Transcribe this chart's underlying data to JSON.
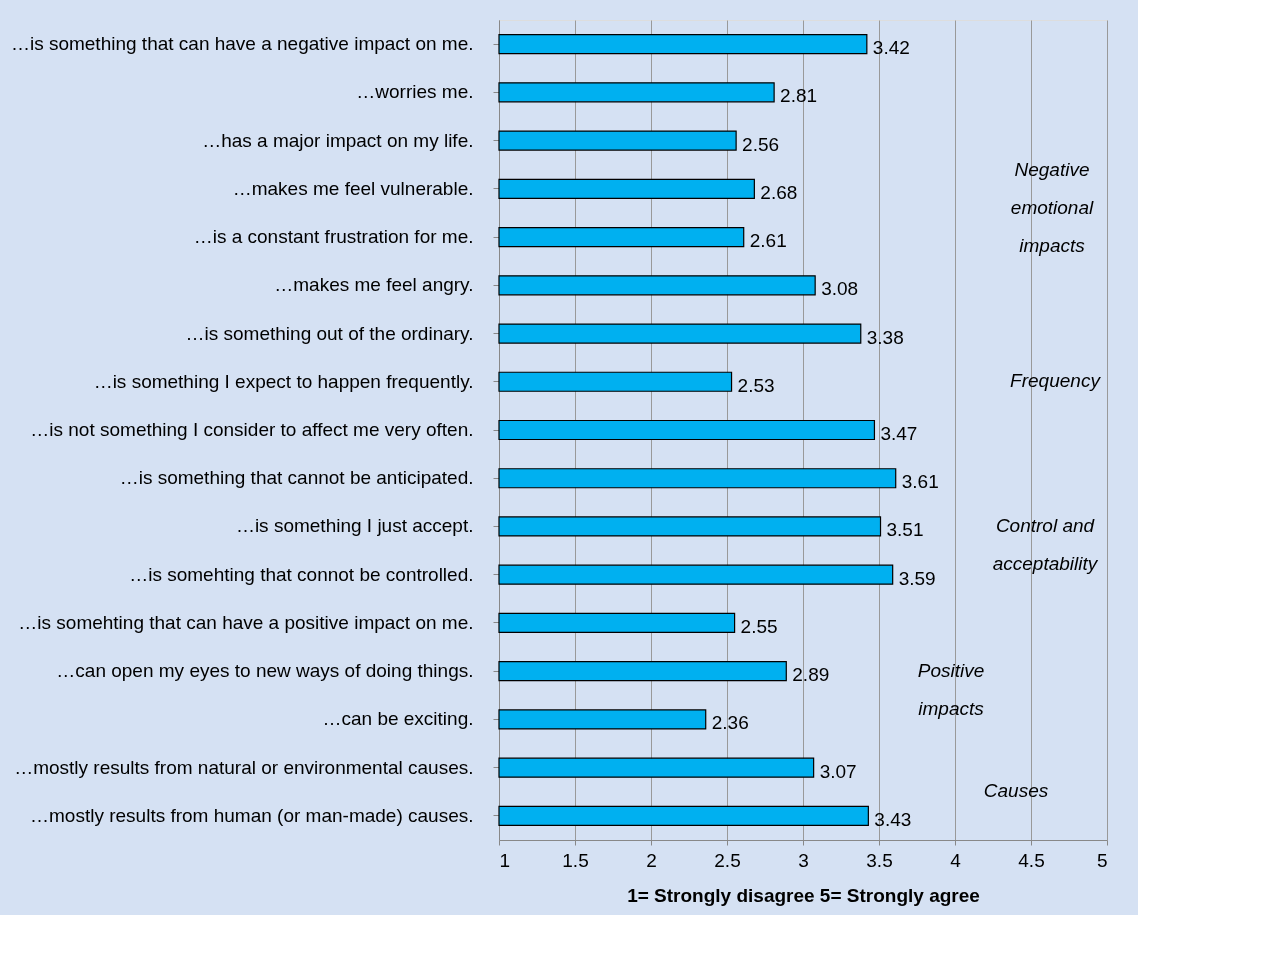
{
  "chart_data": {
    "type": "bar",
    "orientation": "horizontal",
    "xlabel": "1= Strongly disagree 5= Strongly agree",
    "categories": [
      "…is something that can have a negative impact on me.",
      "…worries me.",
      "…has a major impact on my life.",
      "…makes me feel vulnerable.",
      "…is a constant frustration for me.",
      "…makes me feel angry.",
      "…is something out of the ordinary.",
      "…is something I expect to happen frequently.",
      "…is not something I consider to affect me very often.",
      "…is something that cannot be anticipated.",
      "…is something I just accept.",
      "…is somehting that connot be controlled.",
      "…is somehting that can have a positive impact on me.",
      "…can open my eyes to new ways of doing things.",
      "…can be exciting.",
      "…mostly results from natural or environmental causes.",
      "…mostly results from human (or man-made) causes."
    ],
    "values": [
      3.42,
      2.81,
      2.56,
      2.68,
      2.61,
      3.08,
      3.38,
      2.53,
      3.47,
      3.61,
      3.51,
      3.59,
      2.55,
      2.89,
      2.36,
      3.07,
      3.43
    ],
    "color": "#00b0f0",
    "data_labels": true,
    "xlim": [
      1,
      5
    ],
    "xticks": [
      1,
      1.5,
      2,
      2.5,
      3,
      3.5,
      4,
      4.5,
      5
    ],
    "grid": "x",
    "annotations": [
      "Negative\nemotional\nimpacts",
      "Frequency",
      "Control and\nacceptability",
      "Positive\nimpacts",
      "Causes"
    ]
  }
}
